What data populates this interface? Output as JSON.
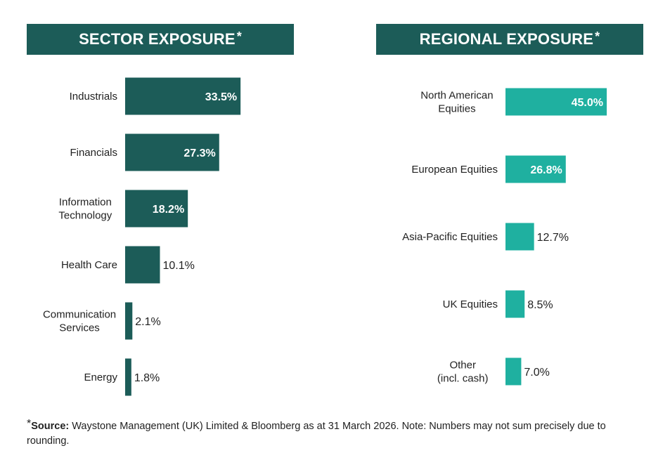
{
  "colors": {
    "sector": "#1c5c58",
    "region": "#1fb0a0",
    "header": "#1c5c58"
  },
  "sector_title": "SECTOR EXPOSURE",
  "region_title": "REGIONAL EXPOSURE",
  "asterisk": "*",
  "footer": {
    "asterisk": "*",
    "source_label": "Source:",
    "text": " Waystone Management (UK) Limited & Bloomberg as at 31 March 2026. Note: Numbers may not sum precisely due to rounding."
  },
  "chart_data": [
    {
      "type": "bar",
      "orientation": "horizontal",
      "title": "SECTOR EXPOSURE*",
      "categories": [
        [
          "Industrials"
        ],
        [
          "Financials"
        ],
        [
          "Information",
          "Technology"
        ],
        [
          "Health Care"
        ],
        [
          "Communication",
          "Services"
        ],
        [
          "Energy"
        ]
      ],
      "values": [
        33.5,
        27.3,
        18.2,
        10.1,
        2.1,
        1.8
      ],
      "labels": [
        "33.5%",
        "27.3%",
        "18.2%",
        "10.1%",
        "2.1%",
        "1.8%"
      ],
      "unit": "%",
      "grid": false
    },
    {
      "type": "bar",
      "orientation": "horizontal",
      "title": "REGIONAL EXPOSURE*",
      "categories": [
        [
          "North American",
          "Equities"
        ],
        [
          "European Equities"
        ],
        [
          "Asia-Pacific Equities"
        ],
        [
          "UK Equities"
        ],
        [
          "Other",
          "(incl. cash)"
        ]
      ],
      "values": [
        45.0,
        26.8,
        12.7,
        8.5,
        7.0
      ],
      "labels": [
        "45.0%",
        "26.8%",
        "12.7%",
        "8.5%",
        "7.0%"
      ],
      "unit": "%",
      "grid": false
    }
  ]
}
